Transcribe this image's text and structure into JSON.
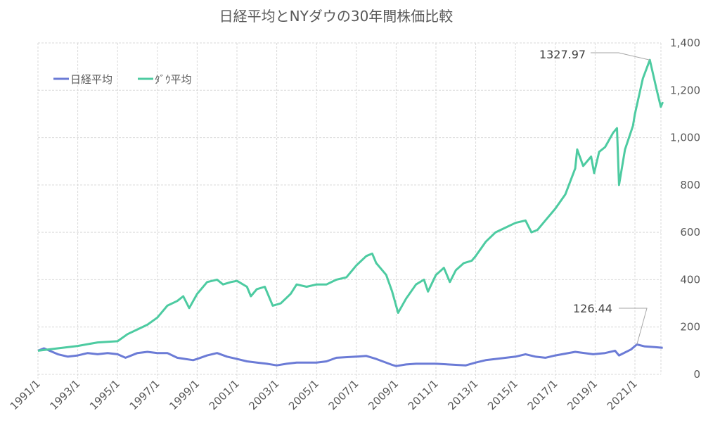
{
  "chart_data": {
    "type": "line",
    "title": "日経平均とNYダウの30年間株価比較",
    "xlabel": "",
    "ylabel": "",
    "x_ticks": [
      "1991/1",
      "1993/1",
      "1995/1",
      "1997/1",
      "1999/1",
      "2001/1",
      "2003/1",
      "2005/1",
      "2007/1",
      "2009/1",
      "2011/1",
      "2013/1",
      "2015/1",
      "2017/1",
      "2019/1",
      "2021/1"
    ],
    "y_ticks": [
      "0",
      "200",
      "400",
      "600",
      "800",
      "1,000",
      "1,200",
      "1,400"
    ],
    "ylim": [
      0,
      1400
    ],
    "xlim": [
      1991.0,
      2022.4
    ],
    "grid": true,
    "legend_position": "top-left",
    "series": [
      {
        "name": "日経平均",
        "color": "#6B7BD6",
        "points": [
          [
            1991,
            100
          ],
          [
            1991.3,
            110
          ],
          [
            1992,
            85
          ],
          [
            1992.5,
            75
          ],
          [
            1993,
            80
          ],
          [
            1993.5,
            90
          ],
          [
            1994,
            85
          ],
          [
            1994.5,
            90
          ],
          [
            1995,
            85
          ],
          [
            1995.4,
            70
          ],
          [
            1996,
            90
          ],
          [
            1996.5,
            95
          ],
          [
            1997,
            90
          ],
          [
            1997.5,
            90
          ],
          [
            1998,
            70
          ],
          [
            1998.8,
            60
          ],
          [
            1999,
            65
          ],
          [
            1999.5,
            80
          ],
          [
            2000,
            90
          ],
          [
            2000.5,
            75
          ],
          [
            2001,
            65
          ],
          [
            2001.5,
            55
          ],
          [
            2002,
            50
          ],
          [
            2002.5,
            45
          ],
          [
            2003,
            38
          ],
          [
            2003.5,
            45
          ],
          [
            2004,
            50
          ],
          [
            2005,
            50
          ],
          [
            2005.5,
            55
          ],
          [
            2006,
            70
          ],
          [
            2007,
            75
          ],
          [
            2007.5,
            78
          ],
          [
            2008,
            65
          ],
          [
            2008.8,
            40
          ],
          [
            2009,
            35
          ],
          [
            2009.5,
            42
          ],
          [
            2010,
            45
          ],
          [
            2011,
            45
          ],
          [
            2012,
            40
          ],
          [
            2012.5,
            38
          ],
          [
            2013,
            50
          ],
          [
            2013.5,
            60
          ],
          [
            2014,
            65
          ],
          [
            2015,
            75
          ],
          [
            2015.5,
            85
          ],
          [
            2016,
            75
          ],
          [
            2016.5,
            70
          ],
          [
            2017,
            80
          ],
          [
            2018,
            95
          ],
          [
            2018.9,
            85
          ],
          [
            2019.5,
            90
          ],
          [
            2020,
            100
          ],
          [
            2020.2,
            80
          ],
          [
            2020.8,
            105
          ],
          [
            2021.1,
            126.44
          ],
          [
            2021.5,
            118
          ],
          [
            2022,
            115
          ],
          [
            2022.4,
            112
          ]
        ]
      },
      {
        "name": "ﾀﾞｳ平均",
        "color": "#4DCBA1",
        "points": [
          [
            1991,
            100
          ],
          [
            1992,
            110
          ],
          [
            1993,
            120
          ],
          [
            1994,
            135
          ],
          [
            1995,
            140
          ],
          [
            1995.5,
            170
          ],
          [
            1996,
            190
          ],
          [
            1996.5,
            210
          ],
          [
            1997,
            240
          ],
          [
            1997.5,
            290
          ],
          [
            1998,
            310
          ],
          [
            1998.3,
            330
          ],
          [
            1998.6,
            280
          ],
          [
            1999,
            340
          ],
          [
            1999.5,
            390
          ],
          [
            2000,
            400
          ],
          [
            2000.3,
            380
          ],
          [
            2000.7,
            390
          ],
          [
            2001,
            395
          ],
          [
            2001.5,
            370
          ],
          [
            2001.7,
            330
          ],
          [
            2002,
            360
          ],
          [
            2002.4,
            370
          ],
          [
            2002.8,
            290
          ],
          [
            2003.2,
            300
          ],
          [
            2003.7,
            340
          ],
          [
            2004,
            380
          ],
          [
            2004.5,
            370
          ],
          [
            2005,
            380
          ],
          [
            2005.5,
            380
          ],
          [
            2006,
            400
          ],
          [
            2006.5,
            410
          ],
          [
            2007,
            460
          ],
          [
            2007.5,
            500
          ],
          [
            2007.8,
            510
          ],
          [
            2008,
            470
          ],
          [
            2008.5,
            420
          ],
          [
            2008.8,
            350
          ],
          [
            2009.1,
            260
          ],
          [
            2009.5,
            320
          ],
          [
            2010,
            380
          ],
          [
            2010.4,
            400
          ],
          [
            2010.6,
            350
          ],
          [
            2011,
            420
          ],
          [
            2011.4,
            450
          ],
          [
            2011.7,
            390
          ],
          [
            2012,
            440
          ],
          [
            2012.4,
            470
          ],
          [
            2012.8,
            480
          ],
          [
            2013,
            500
          ],
          [
            2013.5,
            560
          ],
          [
            2014,
            600
          ],
          [
            2014.5,
            620
          ],
          [
            2015,
            640
          ],
          [
            2015.5,
            650
          ],
          [
            2015.8,
            600
          ],
          [
            2016.1,
            610
          ],
          [
            2016.5,
            650
          ],
          [
            2017,
            700
          ],
          [
            2017.5,
            760
          ],
          [
            2018,
            870
          ],
          [
            2018.1,
            950
          ],
          [
            2018.4,
            880
          ],
          [
            2018.8,
            920
          ],
          [
            2018.95,
            850
          ],
          [
            2019.2,
            940
          ],
          [
            2019.5,
            960
          ],
          [
            2019.9,
            1020
          ],
          [
            2020.1,
            1040
          ],
          [
            2020.2,
            800
          ],
          [
            2020.5,
            950
          ],
          [
            2020.9,
            1050
          ],
          [
            2021,
            1100
          ],
          [
            2021.4,
            1250
          ],
          [
            2021.75,
            1327.97
          ],
          [
            2022.1,
            1200
          ],
          [
            2022.3,
            1130
          ],
          [
            2022.4,
            1150
          ]
        ]
      }
    ],
    "annotations": [
      {
        "text": "1327.97",
        "series": 1,
        "x": 2021.75,
        "y": 1327.97
      },
      {
        "text": "126.44",
        "series": 0,
        "x": 2021.1,
        "y": 126.44
      }
    ]
  }
}
